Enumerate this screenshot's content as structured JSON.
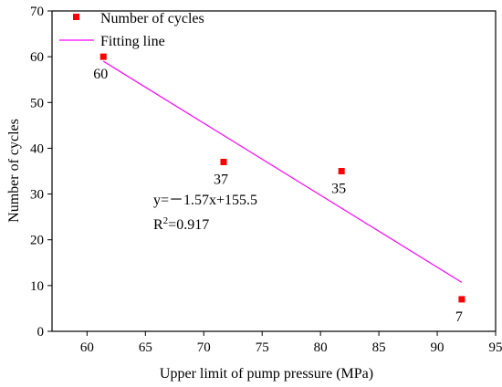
{
  "chart_data": {
    "type": "scatter",
    "xlabel": "Upper limit of pump pressure (MPa)",
    "ylabel": "Number of cycles",
    "xlim": [
      57,
      95
    ],
    "ylim": [
      0,
      70
    ],
    "xticks": [
      60,
      65,
      70,
      75,
      80,
      85,
      90,
      95
    ],
    "yticks": [
      0,
      10,
      20,
      30,
      40,
      50,
      60,
      70
    ],
    "grid": false,
    "legend_position": "top-left",
    "series": [
      {
        "name": "Number of cycles",
        "kind": "scatter",
        "color": "#ff0000",
        "points": [
          {
            "x": 61.4,
            "y": 60,
            "label": "60"
          },
          {
            "x": 71.7,
            "y": 37,
            "label": "37"
          },
          {
            "x": 81.8,
            "y": 35,
            "label": "35"
          },
          {
            "x": 92.1,
            "y": 7,
            "label": "7"
          }
        ]
      },
      {
        "name": "Fitting line",
        "kind": "line",
        "color": "#ff00ff",
        "points": [
          {
            "x": 61.4,
            "y": 59.0
          },
          {
            "x": 92.1,
            "y": 10.7
          }
        ]
      }
    ],
    "annotations": {
      "equation_prefix": "y=",
      "equation_body": "－1.57x+155.5",
      "r2_base": "R",
      "r2_exponent": "2",
      "r2_value": "=0.917"
    }
  }
}
